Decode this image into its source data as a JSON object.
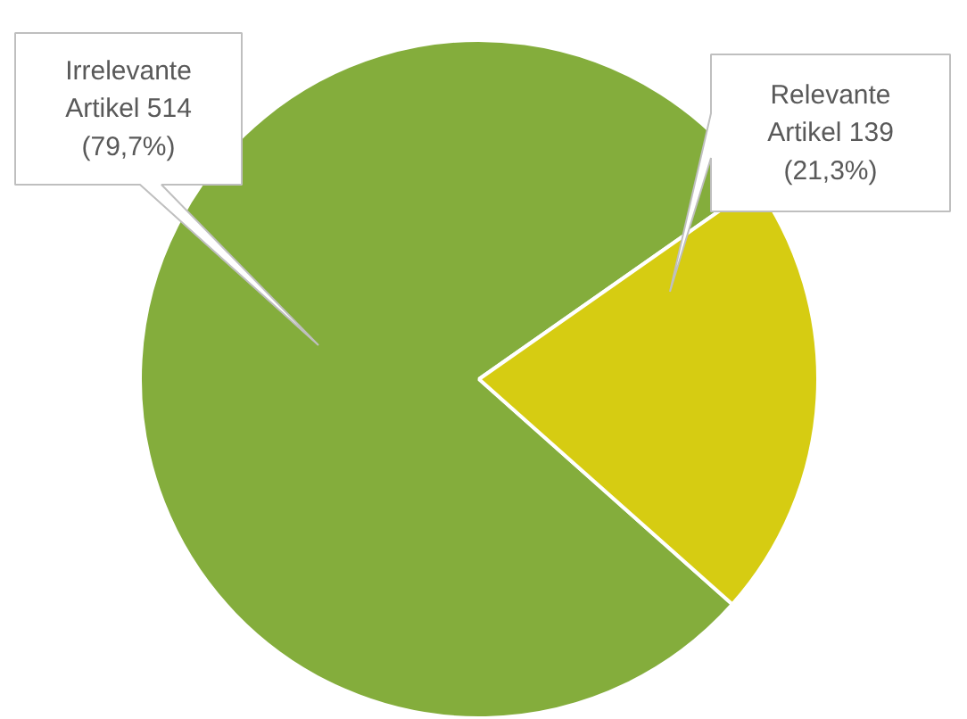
{
  "chart_data": {
    "type": "pie",
    "categories": [
      "Irrelevante Artikel",
      "Relevante Artikel"
    ],
    "values": [
      514,
      139
    ],
    "colors": [
      "#84ad3c",
      "#d6cc12"
    ],
    "value_labels": [
      "514 (79,7%)",
      "139 (21,3%)"
    ]
  }
}
